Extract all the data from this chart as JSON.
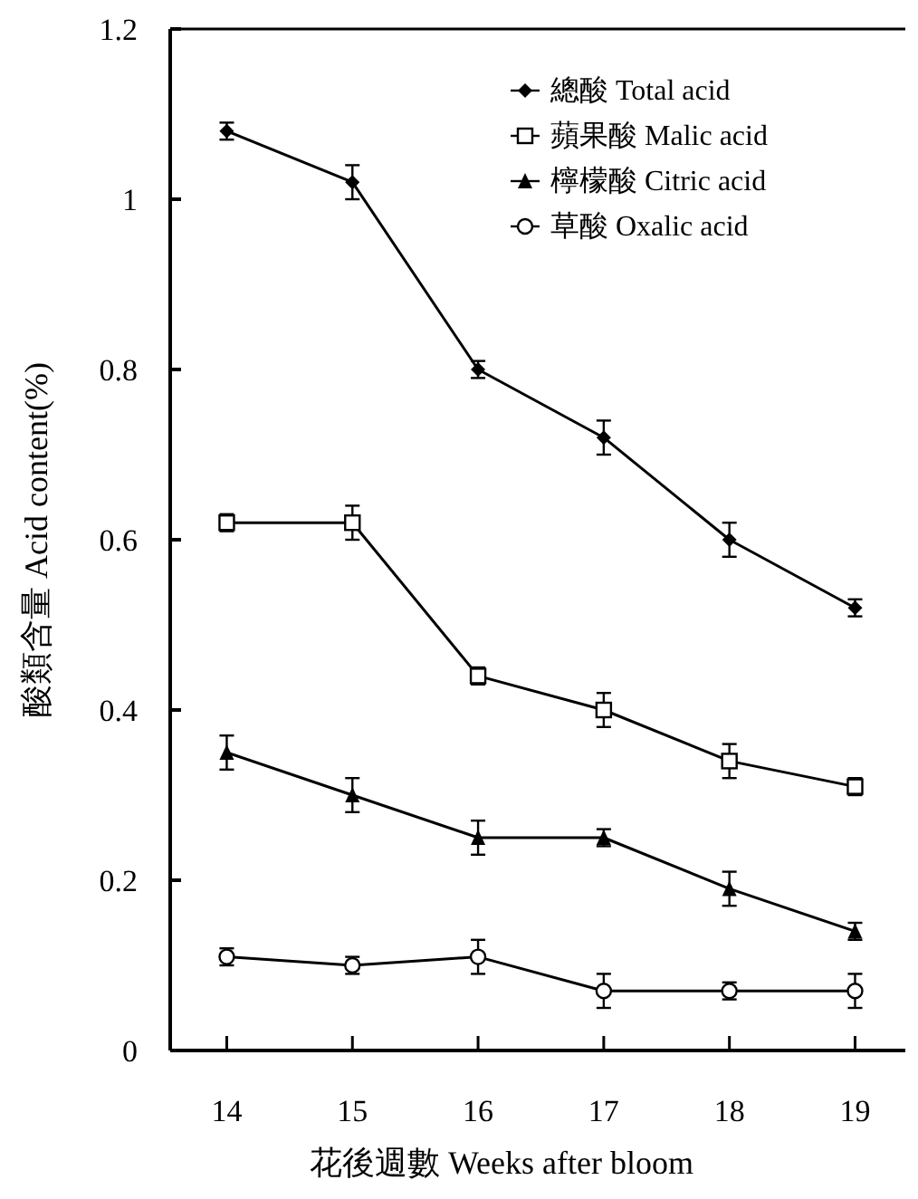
{
  "chart_data": {
    "type": "line",
    "xlabel": "花後週數 Weeks after bloom",
    "ylabel": "酸類含量 Acid content(%)",
    "x": [
      14,
      15,
      16,
      17,
      18,
      19
    ],
    "xlim": [
      13.55,
      19.4
    ],
    "xticks": [
      14,
      15,
      16,
      17,
      18,
      19
    ],
    "ylim": [
      0,
      1.2
    ],
    "yticks": [
      0,
      0.2,
      0.4,
      0.6,
      0.8,
      1,
      1.2
    ],
    "legend": "top right",
    "grid": false,
    "series": [
      {
        "name": "總酸 Total acid",
        "color": "#000000",
        "marker": "diamond",
        "values": [
          1.08,
          1.02,
          0.8,
          0.72,
          0.6,
          0.52
        ],
        "errors": [
          0.01,
          0.02,
          0.01,
          0.02,
          0.02,
          0.01
        ]
      },
      {
        "name": "蘋果酸 Malic acid",
        "color": "#000000",
        "marker": "square",
        "values": [
          0.62,
          0.62,
          0.44,
          0.4,
          0.34,
          0.31
        ],
        "errors": [
          0.01,
          0.02,
          0.01,
          0.02,
          0.02,
          0.01
        ]
      },
      {
        "name": "檸檬酸 Citric acid",
        "color": "#000000",
        "marker": "triangle",
        "values": [
          0.35,
          0.3,
          0.25,
          0.25,
          0.19,
          0.14
        ],
        "errors": [
          0.02,
          0.02,
          0.02,
          0.01,
          0.02,
          0.01
        ]
      },
      {
        "name": "草酸 Oxalic acid",
        "color": "#000000",
        "marker": "circle",
        "values": [
          0.11,
          0.1,
          0.11,
          0.07,
          0.07,
          0.07
        ],
        "errors": [
          0.01,
          0.01,
          0.02,
          0.02,
          0.01,
          0.02
        ]
      }
    ]
  }
}
